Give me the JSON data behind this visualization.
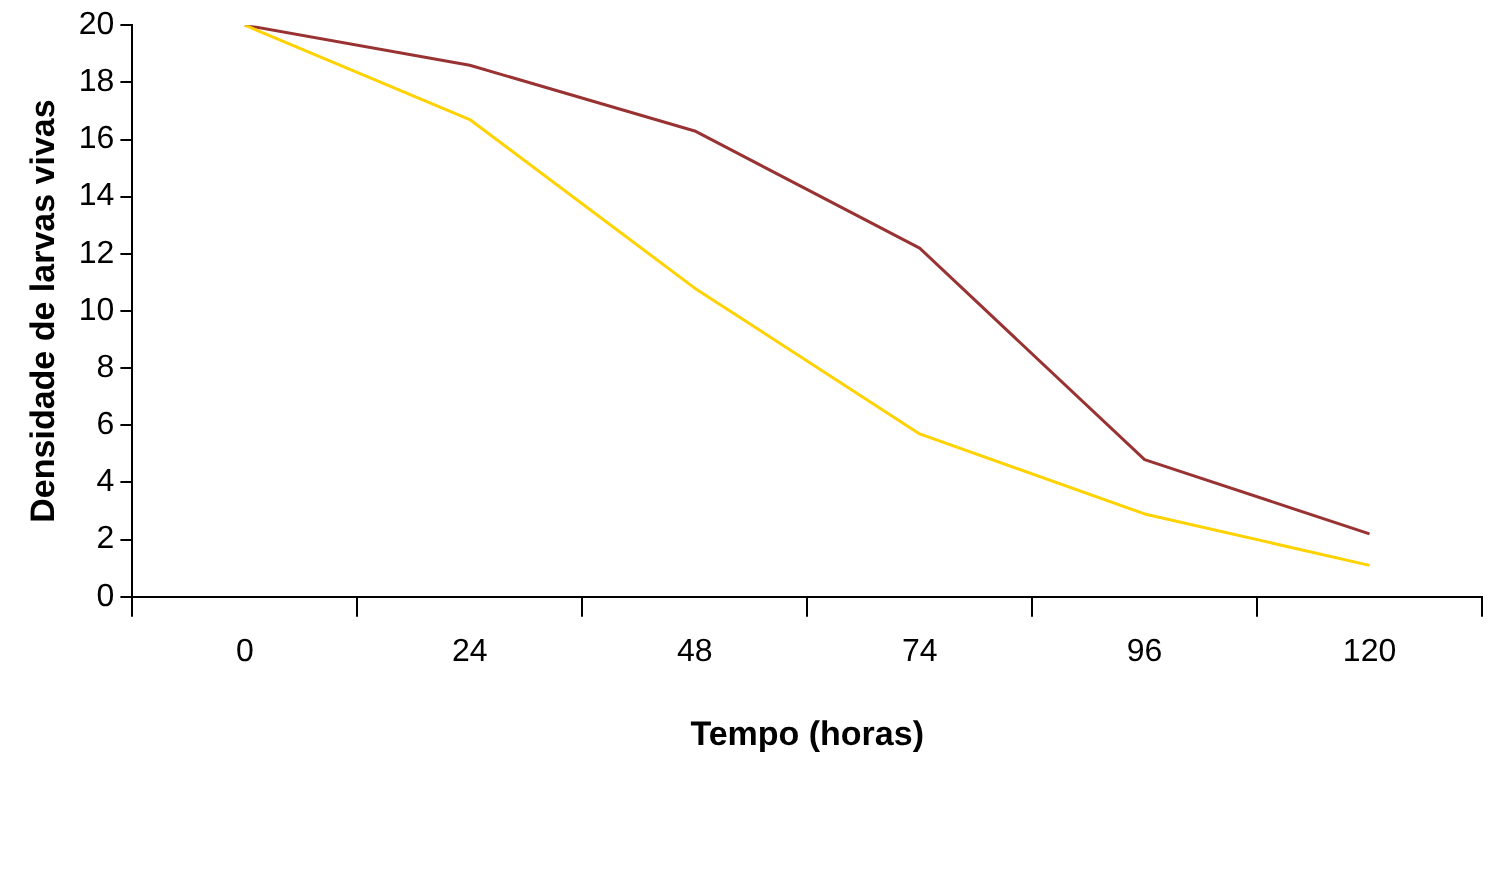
{
  "chart_data": {
    "type": "line",
    "xlabel": "Tempo (horas)",
    "ylabel": "Densidade de larvas vivas",
    "categories": [
      "0",
      "24",
      "48",
      "74",
      "96",
      "120"
    ],
    "series": [
      {
        "color": "#ffd200",
        "values": [
          20,
          16.7,
          10.8,
          5.7,
          2.9,
          1.1
        ]
      },
      {
        "color": "#993333",
        "values": [
          20,
          18.6,
          16.3,
          12.2,
          4.8,
          2.2
        ]
      }
    ],
    "ylim": [
      0,
      20
    ],
    "yticks": [
      0,
      2,
      4,
      6,
      8,
      10,
      12,
      14,
      16,
      18,
      20
    ],
    "grid": false,
    "marker": "none",
    "line_style": "solid"
  }
}
